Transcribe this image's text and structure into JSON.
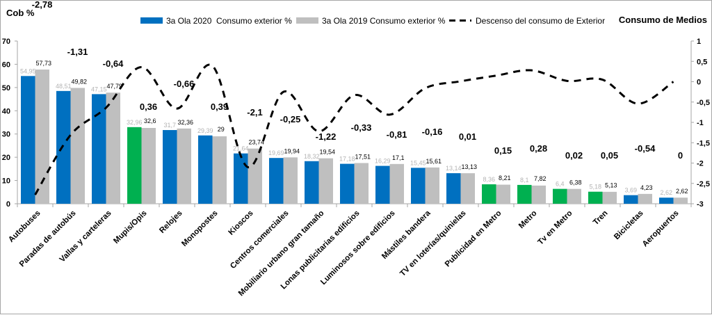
{
  "chart_data": {
    "type": "bar",
    "title": "",
    "left_axis_title": "Cob %",
    "right_axis_title": "Consumo de Medios",
    "xlabel": "",
    "ylabel": "Cob %",
    "ylim": [
      0,
      70
    ],
    "y_ticks": [
      0,
      10,
      20,
      30,
      40,
      50,
      60,
      70
    ],
    "y2lim": [
      -3,
      1
    ],
    "y2_ticks": [
      "1",
      "0,5",
      "0",
      "-0,5",
      "-1",
      "-1,5",
      "-2",
      "-2,5",
      "-3"
    ],
    "y2_tick_values": [
      1,
      0.5,
      0,
      -0.5,
      -1,
      -1.5,
      -2,
      -2.5,
      -3
    ],
    "grid": false,
    "legend_position": "top",
    "categories": [
      "Autobuses",
      "Paradas de autobús",
      "Vallas y carteleras",
      "Mupis/Opis",
      "Relojes",
      "Monopostes",
      "Kioscos",
      "Centros comerciales",
      "Mobiliario urbano gran tamaño",
      "Lonas publicitarias edificios",
      "Luminosos sobre edificios",
      "Mástiles bandera",
      "TV en loterías/quinielas",
      "Publicidad en Metro",
      "Metro",
      "Tv en Metro",
      "Tren",
      "Bicicletas",
      "Aeropuertos"
    ],
    "series": [
      {
        "name": "3a Ola 2020  Consumo exterior %",
        "kind": "bar",
        "axis": "left",
        "color": "#0070c0",
        "highlight_color": "#00b050",
        "highlighted": [
          false,
          false,
          false,
          true,
          false,
          false,
          false,
          false,
          false,
          false,
          false,
          false,
          false,
          true,
          true,
          true,
          true,
          false,
          false
        ],
        "values": [
          54.95,
          48.51,
          47.15,
          32.96,
          31.7,
          29.39,
          21.64,
          19.69,
          18.32,
          17.18,
          16.29,
          15.45,
          13.14,
          8.36,
          8.1,
          6.4,
          5.18,
          3.69,
          2.62
        ],
        "labels": [
          "54,95",
          "48,51",
          "47,15",
          "32,96",
          "31,7",
          "29,39",
          "21,64",
          "19,69",
          "18,32",
          "17,18",
          "16,29",
          "15,45",
          "13,14",
          "8,36",
          "8,1",
          "6,4",
          "5,18",
          "3,69",
          "2,62"
        ]
      },
      {
        "name": "3a Ola 2019 Consumo exterior %",
        "kind": "bar",
        "axis": "left",
        "color": "#bfbfbf",
        "values": [
          57.73,
          49.82,
          47.79,
          32.6,
          32.36,
          29,
          23.74,
          19.94,
          19.54,
          17.51,
          17.1,
          15.61,
          13.13,
          8.21,
          7.82,
          6.38,
          5.13,
          4.23,
          2.62
        ],
        "labels": [
          "57,73",
          "49,82",
          "47,79",
          "32,6",
          "32,36",
          "29",
          "23,74",
          "19,94",
          "19,54",
          "17,51",
          "17,1",
          "15,61",
          "13,13",
          "8,21",
          "7,82",
          "6,38",
          "5,13",
          "4,23",
          "2,62"
        ]
      },
      {
        "name": "Descenso del consumo de Exterior",
        "kind": "line",
        "style": "dashed",
        "axis": "right",
        "color": "#000000",
        "values": [
          -2.78,
          -1.31,
          -0.64,
          0.36,
          -0.66,
          0.39,
          -2.1,
          -0.25,
          -1.22,
          -0.33,
          -0.81,
          -0.16,
          0.01,
          0.15,
          0.28,
          0.02,
          0.05,
          -0.54,
          0
        ],
        "labels": [
          "-2,78",
          "-1,31",
          "-0,64",
          "0,36",
          "-0,66",
          "0,39",
          "-2,1",
          "-0,25",
          "-1,22",
          "-0,33",
          "-0,81",
          "-0,16",
          "0,01",
          "0,15",
          "0,28",
          "0,02",
          "0,05",
          "-0,54",
          "0"
        ]
      }
    ]
  }
}
